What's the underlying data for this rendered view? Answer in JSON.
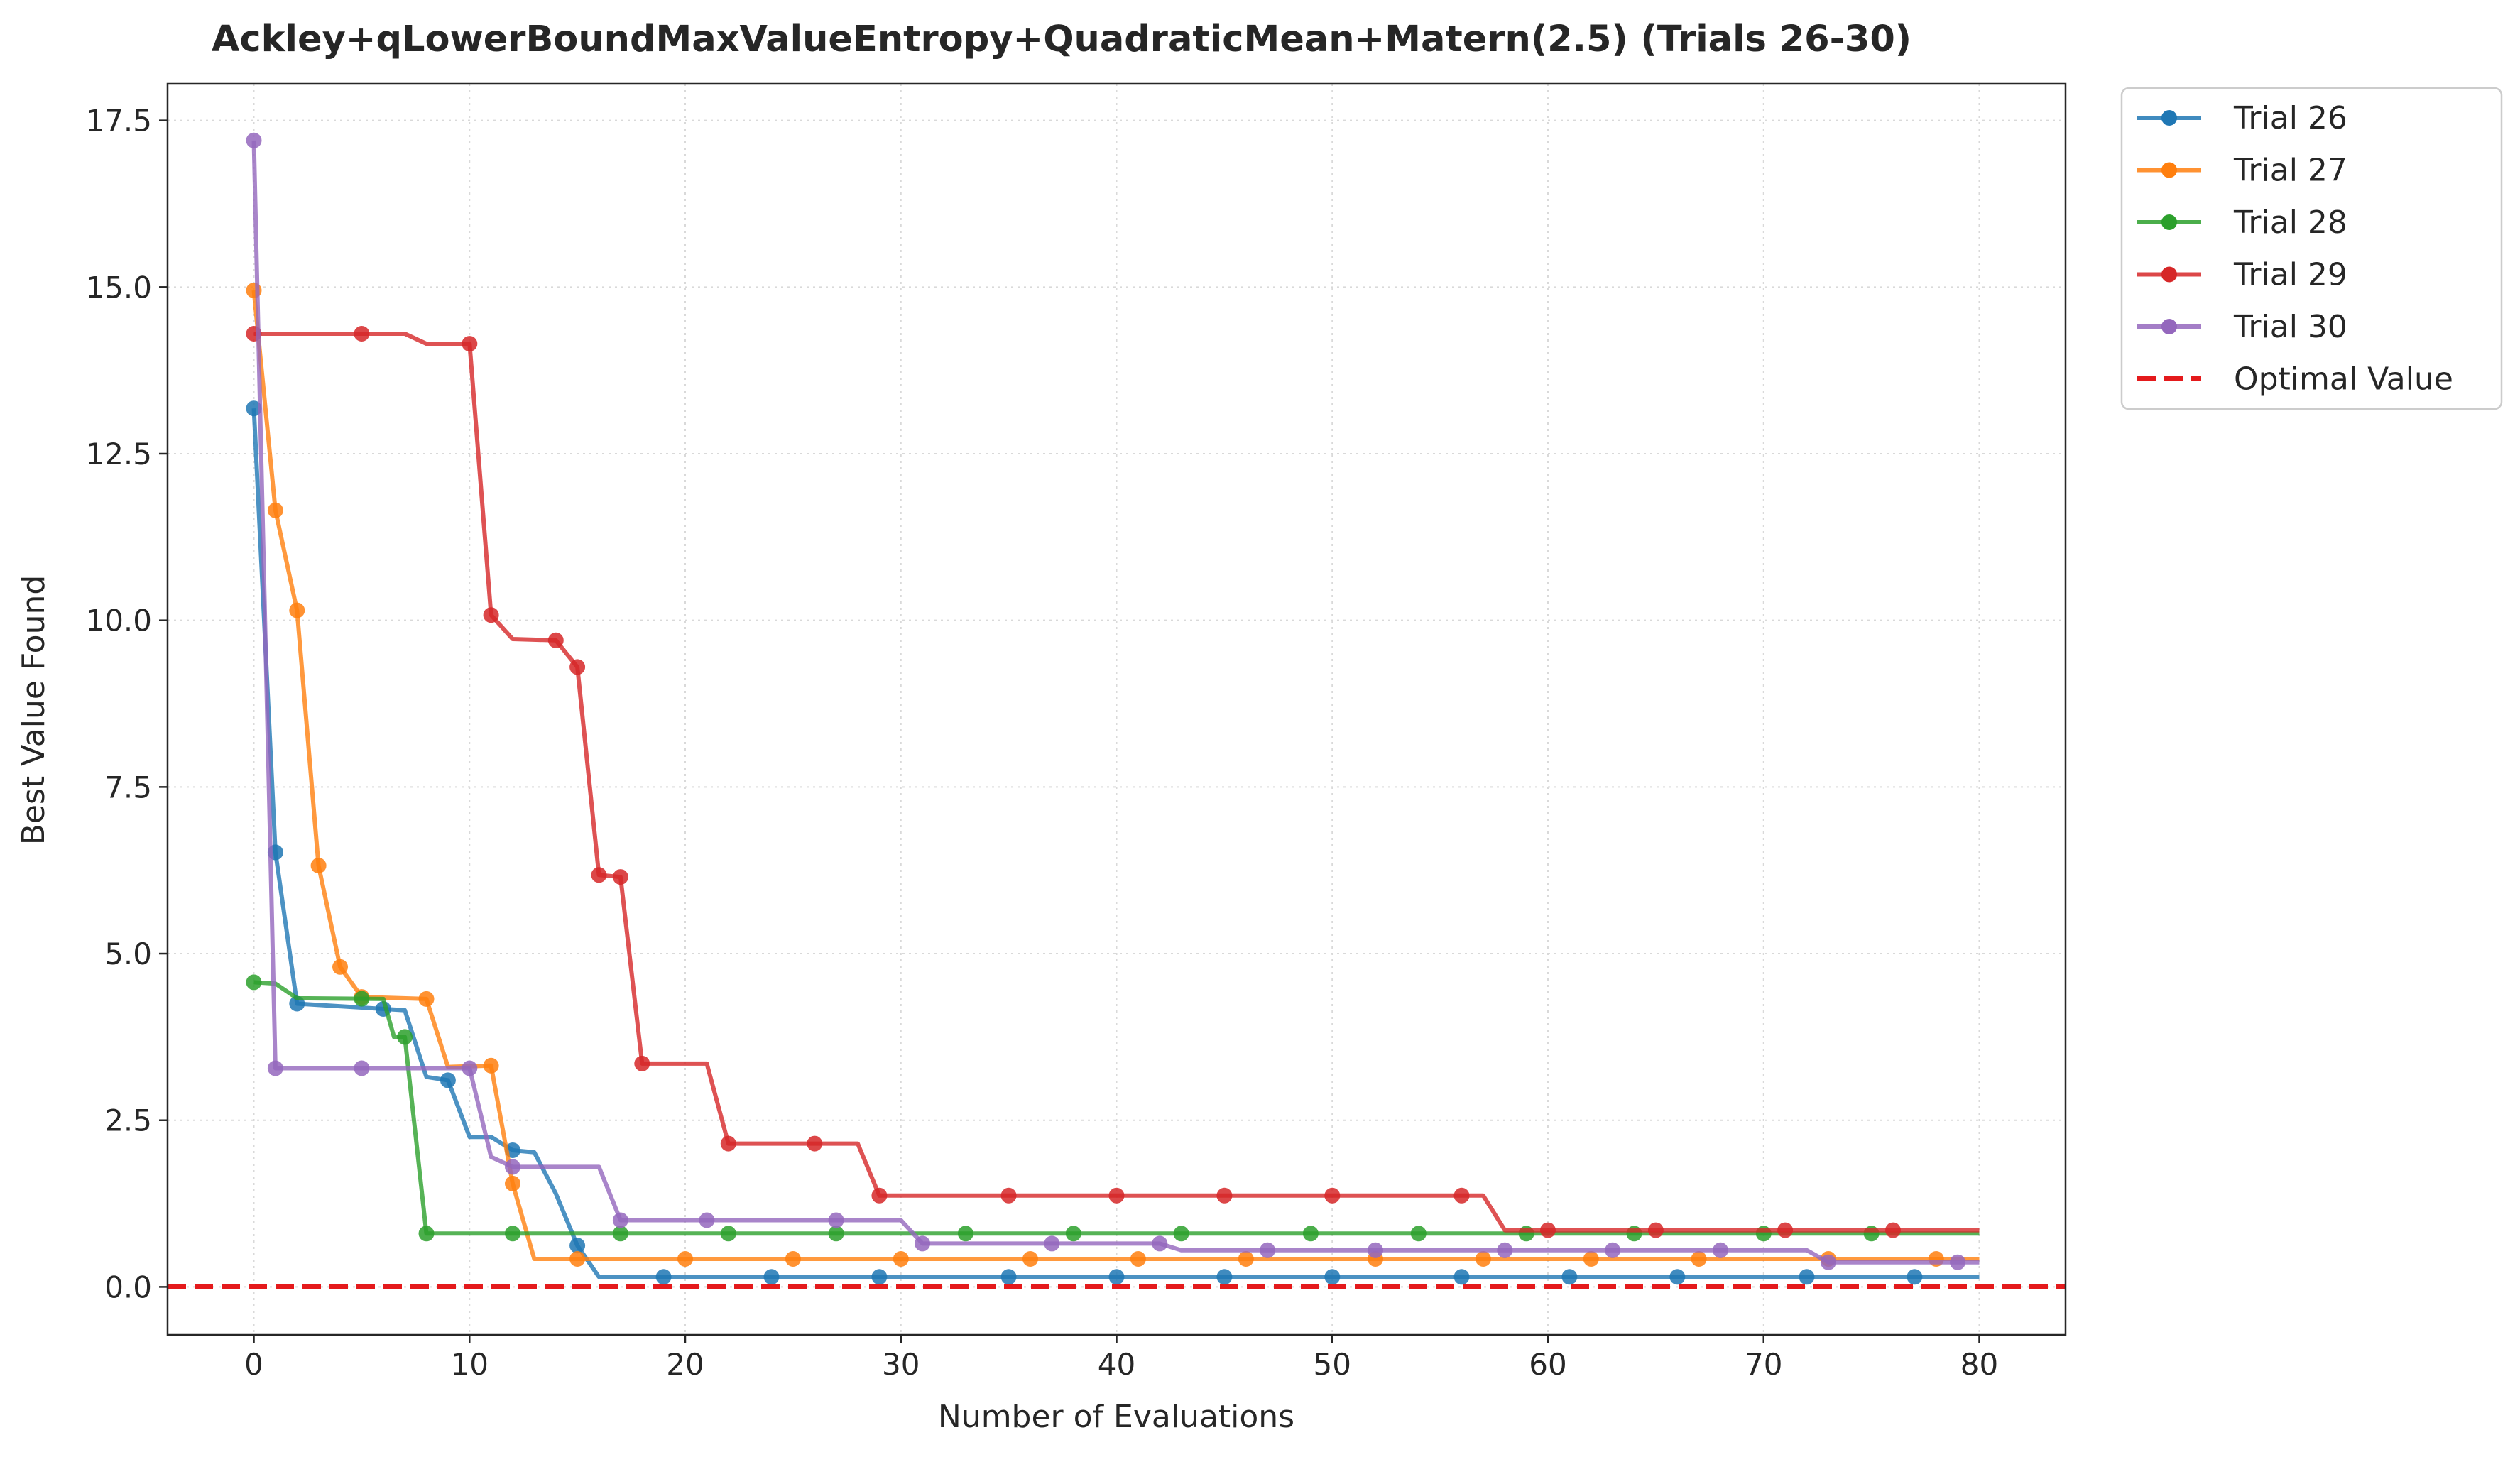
{
  "chart_data": {
    "type": "line",
    "title": "Ackley+qLowerBoundMaxValueEntropy+QuadraticMean+Matern(2.5) (Trials 26-30)",
    "xlabel": "Number of Evaluations",
    "ylabel": "Best Value Found",
    "xlim": [
      -4,
      84
    ],
    "ylim": [
      -0.72,
      18.05
    ],
    "xticks": [
      0,
      10,
      20,
      30,
      40,
      50,
      60,
      70,
      80
    ],
    "xtick_labels": [
      "0",
      "10",
      "20",
      "30",
      "40",
      "50",
      "60",
      "70",
      "80"
    ],
    "yticks": [
      0,
      2.5,
      5,
      7.5,
      10,
      12.5,
      15,
      17.5
    ],
    "ytick_labels": [
      "0.0",
      "2.5",
      "5.0",
      "7.5",
      "10.0",
      "12.5",
      "15.0",
      "17.5"
    ],
    "grid": true,
    "legend_position": "outside-top-right",
    "optimal_value": {
      "name": "Optimal Value",
      "y": 0,
      "color": "#e41a1c"
    },
    "series": [
      {
        "name": "Trial 26",
        "color": "#1f77b4",
        "points": [
          [
            0,
            13.18
          ],
          [
            1,
            6.52
          ],
          [
            2,
            4.25
          ],
          [
            7,
            4.15
          ],
          [
            8,
            3.15
          ],
          [
            9,
            3.1
          ],
          [
            10,
            2.25
          ],
          [
            11,
            2.25
          ],
          [
            12,
            2.05
          ],
          [
            13,
            2.02
          ],
          [
            14,
            1.4
          ],
          [
            15,
            0.62
          ],
          [
            16,
            0.15
          ],
          [
            80,
            0.15
          ]
        ],
        "markers": [
          0,
          1,
          2,
          6,
          9,
          12,
          15,
          19,
          24,
          29,
          35,
          40,
          45,
          50,
          56,
          61,
          66,
          72,
          77
        ]
      },
      {
        "name": "Trial 27",
        "color": "#ff7f0e",
        "points": [
          [
            0,
            14.95
          ],
          [
            1,
            11.65
          ],
          [
            2,
            10.15
          ],
          [
            3,
            6.32
          ],
          [
            4,
            4.8
          ],
          [
            5,
            4.35
          ],
          [
            8,
            4.32
          ],
          [
            9,
            3.3
          ],
          [
            11,
            3.32
          ],
          [
            12,
            1.55
          ],
          [
            13,
            0.42
          ],
          [
            80,
            0.42
          ]
        ],
        "markers": [
          0,
          1,
          2,
          3,
          4,
          5,
          8,
          11,
          12,
          15,
          20,
          25,
          30,
          36,
          41,
          46,
          52,
          57,
          62,
          67,
          73,
          78
        ]
      },
      {
        "name": "Trial 28",
        "color": "#2ca02c",
        "points": [
          [
            0,
            4.57
          ],
          [
            1,
            4.55
          ],
          [
            2,
            4.33
          ],
          [
            6,
            4.32
          ],
          [
            6.5,
            3.75
          ],
          [
            7,
            3.75
          ],
          [
            8,
            0.8
          ],
          [
            80,
            0.8
          ]
        ],
        "markers": [
          0,
          5,
          7,
          8,
          12,
          17,
          22,
          27,
          33,
          38,
          43,
          49,
          54,
          59,
          64,
          70,
          75
        ]
      },
      {
        "name": "Trial 29",
        "color": "#d62728",
        "points": [
          [
            0,
            14.3
          ],
          [
            7,
            14.3
          ],
          [
            8,
            14.15
          ],
          [
            10,
            14.15
          ],
          [
            11,
            10.08
          ],
          [
            12,
            9.72
          ],
          [
            14,
            9.7
          ],
          [
            15,
            9.3
          ],
          [
            16,
            6.18
          ],
          [
            17,
            6.15
          ],
          [
            18,
            3.35
          ],
          [
            21,
            3.35
          ],
          [
            22,
            2.15
          ],
          [
            28,
            2.15
          ],
          [
            29,
            1.37
          ],
          [
            57,
            1.37
          ],
          [
            58,
            0.85
          ],
          [
            80,
            0.85
          ]
        ],
        "markers": [
          0,
          5,
          10,
          11,
          14,
          15,
          16,
          17,
          18,
          22,
          26,
          29,
          35,
          40,
          45,
          50,
          56,
          60,
          65,
          71,
          76
        ]
      },
      {
        "name": "Trial 30",
        "color": "#9467bd",
        "points": [
          [
            0,
            17.2
          ],
          [
            1,
            3.28
          ],
          [
            10,
            3.28
          ],
          [
            11,
            1.95
          ],
          [
            12,
            1.8
          ],
          [
            16,
            1.8
          ],
          [
            17,
            1.0
          ],
          [
            30,
            1.0
          ],
          [
            31,
            0.65
          ],
          [
            42,
            0.65
          ],
          [
            43,
            0.55
          ],
          [
            72,
            0.55
          ],
          [
            73,
            0.37
          ],
          [
            80,
            0.37
          ]
        ],
        "markers": [
          0,
          1,
          5,
          10,
          12,
          17,
          21,
          27,
          31,
          37,
          42,
          47,
          52,
          58,
          63,
          68,
          73,
          79
        ]
      }
    ]
  }
}
